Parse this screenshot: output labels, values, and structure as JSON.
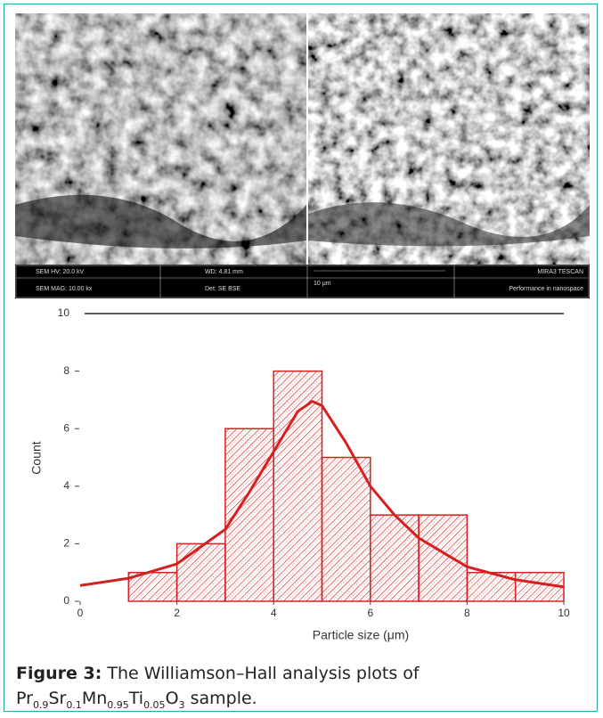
{
  "sem_image": {
    "left_info": [
      "SEM HV: 20.0 kV",
      "SEM MAG: 10.00 kx"
    ],
    "middle_info": [
      "WD: 4.81 mm",
      "Det: SE BSE"
    ],
    "scale_label": "10 μm",
    "right_info": [
      "MIRA3 TESCAN",
      "Performance in nanospace"
    ]
  },
  "chart_data": {
    "type": "histogram",
    "xlabel": "Particle size (μm)",
    "ylabel": "Count",
    "bins": [
      0,
      1,
      2,
      3,
      4,
      5,
      6,
      7,
      8,
      9,
      10
    ],
    "counts": [
      0,
      1,
      2,
      6,
      8,
      5,
      3,
      3,
      1,
      1
    ],
    "color": "#d62020",
    "fit": {
      "x": [
        0,
        1,
        2,
        3,
        3.5,
        4,
        4.5,
        4.8,
        5,
        5.5,
        6,
        6.5,
        7,
        8,
        9,
        10
      ],
      "values": [
        0.55,
        0.8,
        1.3,
        2.5,
        3.8,
        5.2,
        6.6,
        6.95,
        6.8,
        5.5,
        4.0,
        3.0,
        2.2,
        1.2,
        0.75,
        0.5
      ]
    },
    "xlim": [
      0,
      10
    ],
    "xticks": [
      0,
      2,
      4,
      6,
      8,
      10
    ],
    "ylim": [
      0,
      10
    ],
    "yticks": [
      0,
      2,
      4,
      6,
      8,
      10
    ]
  },
  "caption": {
    "label": "Figure 3:",
    "text": "The Williamson–Hall analysis plots of",
    "formula": [
      {
        "text": "Pr",
        "sub": "0.9"
      },
      {
        "text": "Sr",
        "sub": "0.1"
      },
      {
        "text": "Mn",
        "sub": "0.95"
      },
      {
        "text": "Ti",
        "sub": "0.05"
      },
      {
        "text": "O",
        "sub": "3"
      }
    ],
    "suffix": "sample."
  }
}
